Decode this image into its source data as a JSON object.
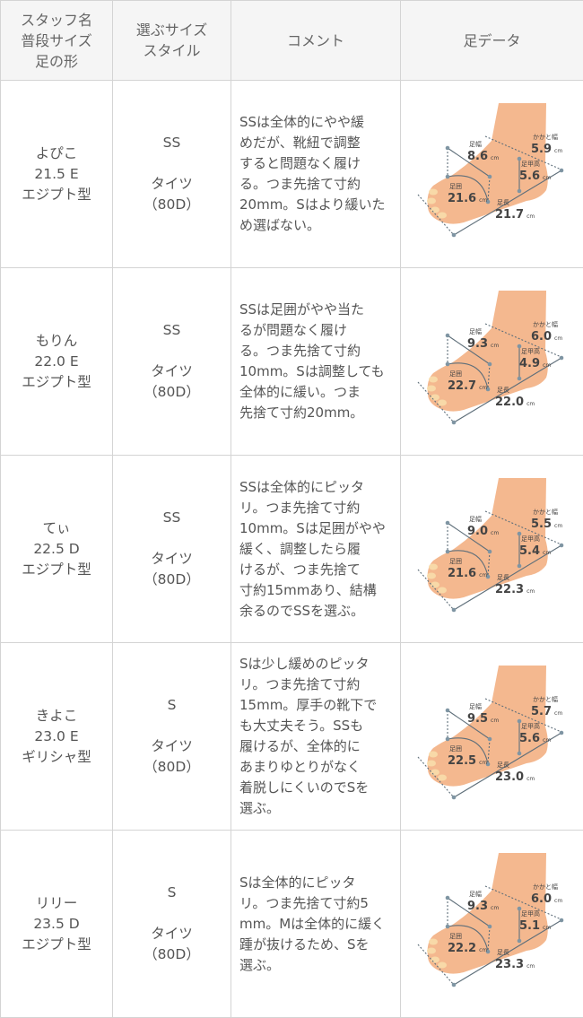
{
  "header": {
    "col1": [
      "スタッフ名",
      "普段サイズ",
      "足の形"
    ],
    "col2": [
      "選ぶサイズ",
      "スタイル"
    ],
    "col3": "コメント",
    "col4": "足データ"
  },
  "foot_labels": {
    "width": "足幅",
    "heel": "かかと幅",
    "instep": "足甲高",
    "girth": "足囲",
    "length": "足長",
    "unit": "cm"
  },
  "colors": {
    "skin": "#f4b88f",
    "line": "#5f6f7a",
    "dot": "#7f95a3"
  },
  "rows": [
    {
      "name": "よぴこ",
      "size": "21.5 E",
      "shape": "エジプト型",
      "choice": "SS",
      "style": "タイツ",
      "denier": "（80D）",
      "comment": [
        "SSは全体的にやや緩",
        "めだが、靴紐で調整",
        "すると問題なく履け",
        "る。つま先捨て寸約",
        "20mm。Sはより緩いた",
        "め選ばない。"
      ],
      "foot": {
        "width": "8.6",
        "heel": "5.9",
        "instep": "5.6",
        "girth": "21.6",
        "length": "21.7"
      }
    },
    {
      "name": "もりん",
      "size": "22.0 E",
      "shape": "エジプト型",
      "choice": "SS",
      "style": "タイツ",
      "denier": "（80D）",
      "comment": [
        "SSは足囲がやや当た",
        "るが問題なく履け",
        "る。つま先捨て寸約",
        "10mm。Sは調整しても",
        "全体的に緩い。つま",
        "先捨て寸約20mm。"
      ],
      "foot": {
        "width": "9.3",
        "heel": "6.0",
        "instep": "4.9",
        "girth": "22.7",
        "length": "22.0"
      }
    },
    {
      "name": "てぃ",
      "size": "22.5 D",
      "shape": "エジプト型",
      "choice": "SS",
      "style": "タイツ",
      "denier": "（80D）",
      "comment": [
        "SSは全体的にピッタ",
        "リ。つま先捨て寸約",
        "10mm。Sは足囲がやや",
        "緩く、調整したら履",
        "けるが、つま先捨て",
        "寸約15mmあり、結構",
        "余るのでSSを選ぶ。"
      ],
      "foot": {
        "width": "9.0",
        "heel": "5.5",
        "instep": "5.4",
        "girth": "21.6",
        "length": "22.3"
      }
    },
    {
      "name": "きよこ",
      "size": "23.0 E",
      "shape": "ギリシャ型",
      "choice": "S",
      "style": "タイツ",
      "denier": "（80D）",
      "comment": [
        "Sは少し緩めのピッタ",
        "リ。つま先捨て寸約",
        "15mm。厚手の靴下で",
        "も大丈夫そう。SSも",
        "履けるが、全体的に",
        "あまりゆとりがなく",
        "着脱しにくいのでSを",
        "選ぶ。"
      ],
      "foot": {
        "width": "9.5",
        "heel": "5.7",
        "instep": "5.6",
        "girth": "22.5",
        "length": "23.0"
      }
    },
    {
      "name": "リリー",
      "size": "23.5 D",
      "shape": "エジプト型",
      "choice": "S",
      "style": "タイツ",
      "denier": "（80D）",
      "comment": [
        "Sは全体的にピッタ",
        "リ。つま先捨て寸約5",
        "mm。Mは全体的に緩く",
        "踵が抜けるため、Sを",
        "選ぶ。"
      ],
      "foot": {
        "width": "9.3",
        "heel": "6.0",
        "instep": "5.1",
        "girth": "22.2",
        "length": "23.3"
      }
    }
  ]
}
